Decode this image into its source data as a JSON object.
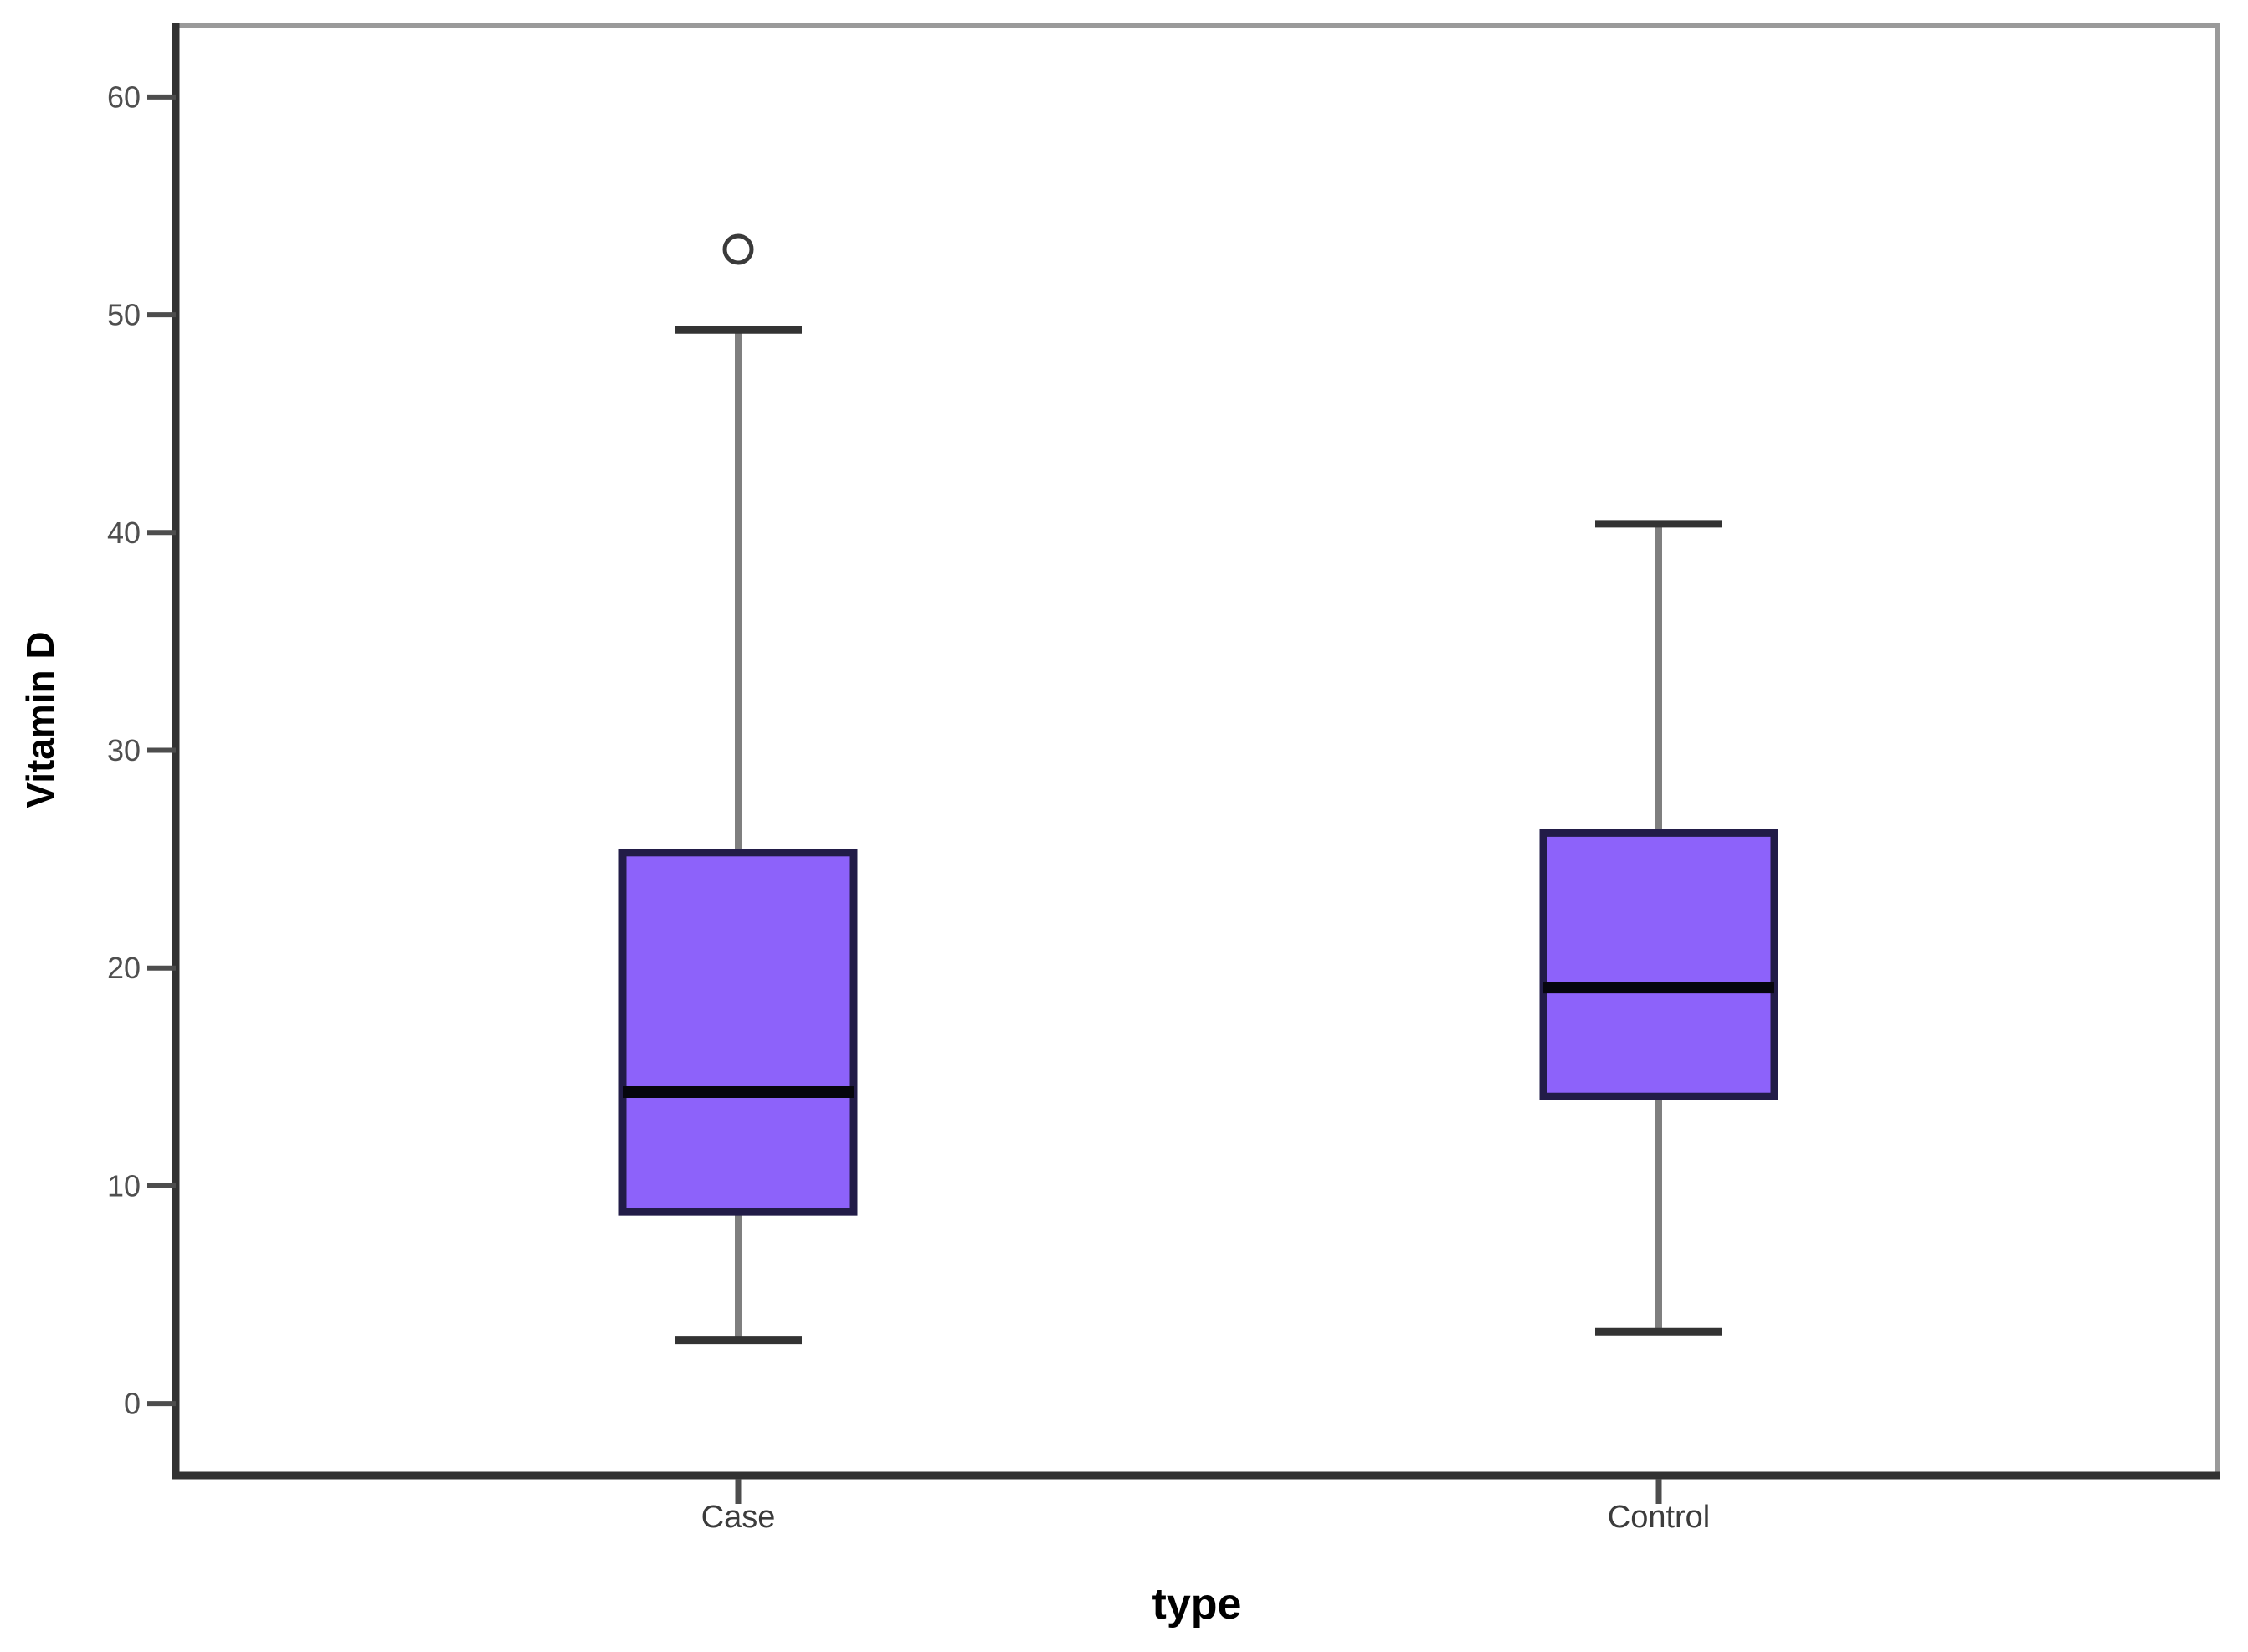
{
  "chart_data": {
    "type": "boxplot",
    "title": "",
    "xlabel": "type",
    "ylabel": "Vitamin D",
    "categories": [
      "Case",
      "Control"
    ],
    "y_ticks": [
      0,
      10,
      20,
      30,
      40,
      50,
      60
    ],
    "ylim": [
      -3.3,
      63.3
    ],
    "grid": false,
    "legend": "none",
    "series": [
      {
        "name": "Case",
        "whisker_low": 2.9,
        "q1": 8.8,
        "median": 14.3,
        "q3": 25.3,
        "whisker_high": 49.3,
        "outliers": [
          53.0
        ]
      },
      {
        "name": "Control",
        "whisker_low": 3.3,
        "q1": 14.1,
        "median": 19.1,
        "q3": 26.2,
        "whisker_high": 40.4,
        "outliers": []
      }
    ],
    "colors": {
      "box_fill": "#8d62fa",
      "box_border": "#221c48",
      "median": "#06060d",
      "whisker": "#7f7f7f",
      "cap": "#333333",
      "axis": "#323232",
      "frame": "#9a9a9a",
      "tick": "#4d4d4d",
      "tick_label": "#4f4f4f",
      "category_label": "#3c3c3c",
      "outlier_stroke": "#3a3a3a",
      "background": "#ffffff"
    }
  }
}
